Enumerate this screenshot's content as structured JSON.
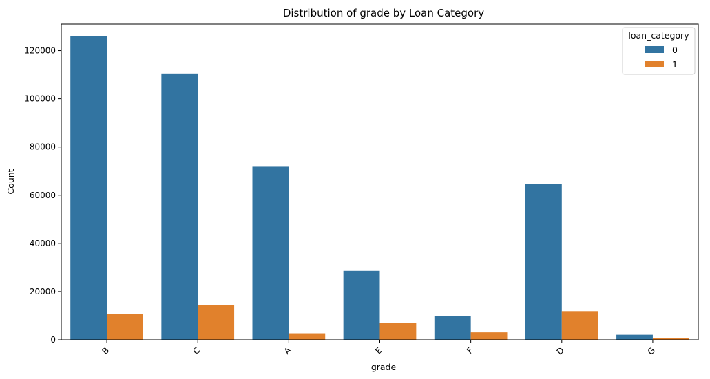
{
  "chart_data": {
    "type": "bar",
    "title": "Distribution of grade by Loan Category",
    "xlabel": "grade",
    "ylabel": "Count",
    "categories": [
      "B",
      "C",
      "A",
      "E",
      "F",
      "D",
      "G"
    ],
    "ylim": [
      0,
      131000
    ],
    "yticks": [
      0,
      20000,
      40000,
      60000,
      80000,
      100000,
      120000
    ],
    "grid": false,
    "legend": {
      "title": "loan_category",
      "position": "top-right"
    },
    "series": [
      {
        "name": "0",
        "color": "#3274a1",
        "values": [
          126000,
          110500,
          71800,
          28600,
          9900,
          64700,
          2100
        ]
      },
      {
        "name": "1",
        "color": "#e1812c",
        "values": [
          10800,
          14500,
          2700,
          7100,
          3100,
          11900,
          800
        ]
      }
    ]
  }
}
